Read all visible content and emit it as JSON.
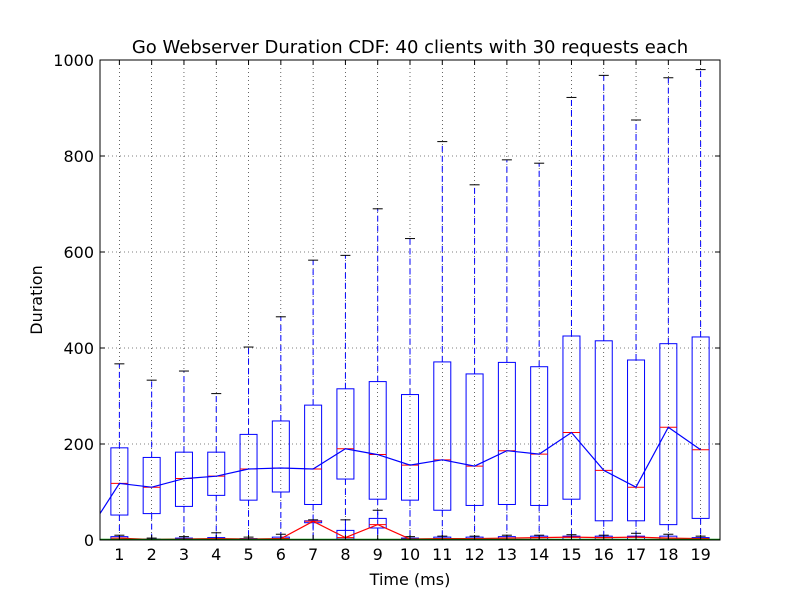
{
  "chart_data": {
    "type": "box",
    "title": "Go Webserver Duration CDF: 40 clients with 30 requests each",
    "xlabel": "Time (ms)",
    "ylabel": "Duration",
    "ylim": [
      0,
      1000
    ],
    "yticks": [
      0,
      200,
      400,
      600,
      800,
      1000
    ],
    "grid": true,
    "categories": [
      "1",
      "2",
      "3",
      "4",
      "5",
      "6",
      "7",
      "8",
      "9",
      "10",
      "11",
      "12",
      "13",
      "14",
      "15",
      "16",
      "17",
      "18",
      "19"
    ],
    "series": [
      {
        "color": "#0000ff",
        "box_color": "#0000ff",
        "median_color": "#ff0000",
        "line_color": "#0000ff",
        "boxes": [
          {
            "whislo": 0,
            "q1": 52,
            "med": 118,
            "q3": 192,
            "whishi": 367
          },
          {
            "whislo": 0,
            "q1": 55,
            "med": 110,
            "q3": 172,
            "whishi": 333
          },
          {
            "whislo": 0,
            "q1": 70,
            "med": 128,
            "q3": 183,
            "whishi": 352
          },
          {
            "whislo": 0,
            "q1": 93,
            "med": 133,
            "q3": 183,
            "whishi": 305
          },
          {
            "whislo": 0,
            "q1": 83,
            "med": 148,
            "q3": 220,
            "whishi": 402
          },
          {
            "whislo": 0,
            "q1": 100,
            "med": 150,
            "q3": 248,
            "whishi": 465
          },
          {
            "whislo": 0,
            "q1": 74,
            "med": 148,
            "q3": 281,
            "whishi": 583
          },
          {
            "whislo": 0,
            "q1": 127,
            "med": 190,
            "q3": 315,
            "whishi": 593
          },
          {
            "whislo": 0,
            "q1": 85,
            "med": 178,
            "q3": 330,
            "whishi": 690
          },
          {
            "whislo": 0,
            "q1": 83,
            "med": 156,
            "q3": 303,
            "whishi": 628
          },
          {
            "whislo": 0,
            "q1": 62,
            "med": 167,
            "q3": 371,
            "whishi": 830
          },
          {
            "whislo": 0,
            "q1": 72,
            "med": 154,
            "q3": 346,
            "whishi": 740
          },
          {
            "whislo": 0,
            "q1": 74,
            "med": 186,
            "q3": 370,
            "whishi": 792
          },
          {
            "whislo": 0,
            "q1": 72,
            "med": 179,
            "q3": 361,
            "whishi": 785
          },
          {
            "whislo": 0,
            "q1": 85,
            "med": 224,
            "q3": 425,
            "whishi": 922
          },
          {
            "whislo": 0,
            "q1": 40,
            "med": 145,
            "q3": 415,
            "whishi": 968
          },
          {
            "whislo": 0,
            "q1": 40,
            "med": 110,
            "q3": 375,
            "whishi": 875
          },
          {
            "whislo": 0,
            "q1": 32,
            "med": 235,
            "q3": 409,
            "whishi": 963
          },
          {
            "whislo": 0,
            "q1": 45,
            "med": 188,
            "q3": 423,
            "whishi": 980
          }
        ]
      },
      {
        "color": "#ff0000",
        "box_color": "#0000ff",
        "median_color": "#ff0000",
        "line_color": "#ff0000",
        "boxes": [
          {
            "whislo": 0,
            "q1": 0,
            "med": 4,
            "q3": 7,
            "whishi": 10
          },
          {
            "whislo": 0,
            "q1": 0,
            "med": 1,
            "q3": 2,
            "whishi": 4
          },
          {
            "whislo": 0,
            "q1": 0,
            "med": 2,
            "q3": 4,
            "whishi": 7
          },
          {
            "whislo": 0,
            "q1": 0,
            "med": 3,
            "q3": 5,
            "whishi": 15
          },
          {
            "whislo": 0,
            "q1": 0,
            "med": 2,
            "q3": 3,
            "whishi": 6
          },
          {
            "whislo": 0,
            "q1": 0,
            "med": 3,
            "q3": 6,
            "whishi": 12
          },
          {
            "whislo": 0,
            "q1": 36,
            "med": 39,
            "q3": 40,
            "whishi": 42
          },
          {
            "whislo": 0,
            "q1": 2,
            "med": 5,
            "q3": 20,
            "whishi": 42
          },
          {
            "whislo": 0,
            "q1": 25,
            "med": 32,
            "q3": 45,
            "whishi": 62
          },
          {
            "whislo": 0,
            "q1": 0,
            "med": 2,
            "q3": 4,
            "whishi": 7
          },
          {
            "whislo": 0,
            "q1": 0,
            "med": 3,
            "q3": 6,
            "whishi": 8
          },
          {
            "whislo": 0,
            "q1": 0,
            "med": 3,
            "q3": 6,
            "whishi": 8
          },
          {
            "whislo": 0,
            "q1": 0,
            "med": 4,
            "q3": 7,
            "whishi": 10
          },
          {
            "whislo": 0,
            "q1": 0,
            "med": 5,
            "q3": 8,
            "whishi": 10
          },
          {
            "whislo": 0,
            "q1": 0,
            "med": 6,
            "q3": 8,
            "whishi": 11
          },
          {
            "whislo": 0,
            "q1": 0,
            "med": 5,
            "q3": 8,
            "whishi": 10
          },
          {
            "whislo": 0,
            "q1": 0,
            "med": 6,
            "q3": 8,
            "whishi": 14
          },
          {
            "whislo": 0,
            "q1": 0,
            "med": 4,
            "q3": 8,
            "whishi": 12
          },
          {
            "whislo": 0,
            "q1": 0,
            "med": 3,
            "q3": 5,
            "whishi": 8
          }
        ]
      }
    ]
  }
}
